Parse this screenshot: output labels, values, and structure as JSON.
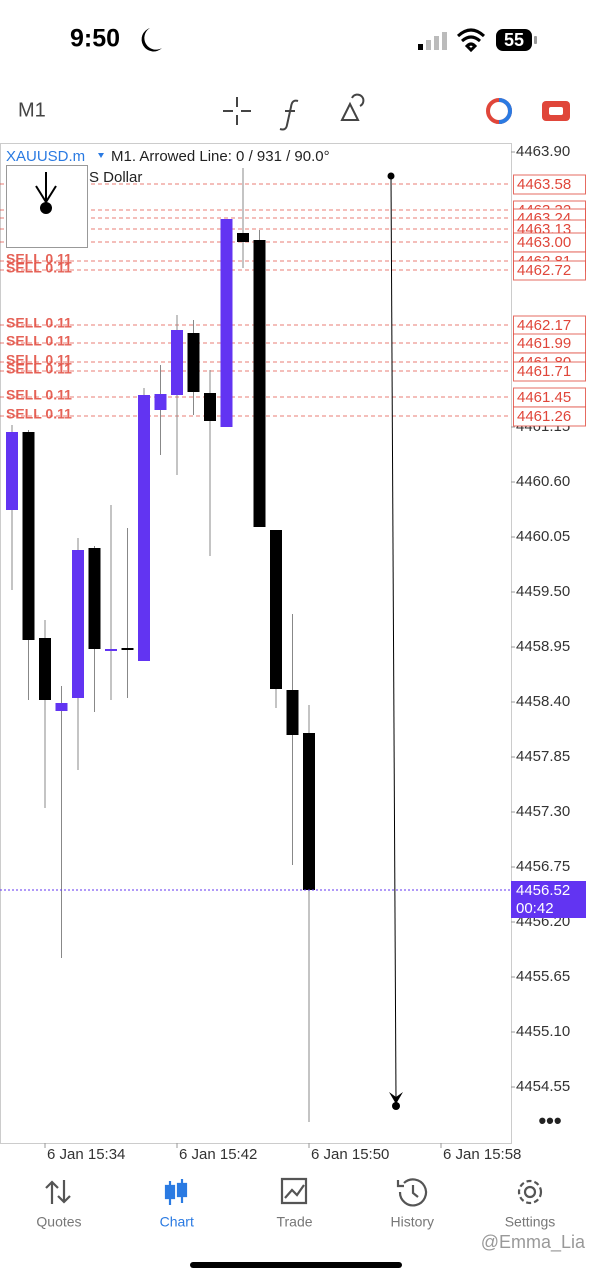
{
  "status_bar": {
    "time": "9:50",
    "battery": "55"
  },
  "toolbar": {
    "timeframe": "M1"
  },
  "chart_data": {
    "type": "candlestick",
    "symbol": "XAUUSD.m",
    "caption": "M1. Arrowed Line: 0 / 931 / 90.0°",
    "subtitle": "S Dollar",
    "categories": [
      null,
      null,
      "6 Jan 15:34",
      null,
      null,
      null,
      null,
      null,
      null,
      null,
      "6 Jan 15:42",
      null,
      null,
      null,
      null,
      null,
      null,
      null,
      "6 Jan 15:50",
      null,
      null,
      null,
      null,
      null,
      null,
      null,
      "6 Jan 15:58"
    ],
    "open": [
      4460.32,
      4461.1,
      4459.04,
      4458.31,
      4458.44,
      4459.94,
      4458.93,
      4458.94,
      4458.81,
      4461.32,
      4461.47,
      4462.09,
      4461.49,
      4461.15,
      4463.09,
      4463.02,
      4460.12,
      4458.52,
      4458.09,
      null,
      null,
      null,
      null,
      null,
      null,
      null,
      null
    ],
    "high": [
      4461.17,
      4461.12,
      4459.22,
      4458.56,
      4460.04,
      4459.96,
      4460.37,
      4460.14,
      4461.54,
      4461.77,
      4462.27,
      4462.22,
      4461.72,
      4463.23,
      4463.74,
      4463.12,
      4460.12,
      4459.28,
      4458.37,
      null,
      null,
      null,
      null,
      null,
      null,
      null,
      null
    ],
    "low": [
      4459.52,
      4458.42,
      4457.34,
      4455.84,
      4457.72,
      4458.3,
      4458.42,
      4458.44,
      4458.81,
      4460.87,
      4460.67,
      4461.27,
      4459.86,
      4461.15,
      4462.74,
      4460.15,
      4458.34,
      4456.77,
      4454.2,
      null,
      null,
      null,
      null,
      null,
      null,
      null,
      null
    ],
    "close": [
      4461.1,
      4459.02,
      4458.42,
      4458.39,
      4459.92,
      4458.93,
      4458.93,
      4458.92,
      4461.47,
      4461.48,
      4462.12,
      4461.5,
      4461.21,
      4463.23,
      4463.0,
      4460.15,
      4458.53,
      4458.07,
      4456.52,
      null,
      null,
      null,
      null,
      null,
      null,
      null,
      null
    ],
    "colors": {
      "up": "#6234f2",
      "down": "#000000",
      "order": "#e0463a",
      "price": "#6234f2"
    },
    "ylim": [
      4453.99,
      4463.99
    ],
    "yticks": [
      {
        "value": 4463.9,
        "label": "4463.90"
      },
      4461.15,
      {
        "value": 4460.6,
        "label": "4460.60"
      },
      4460.05,
      {
        "value": 4459.5,
        "label": "4459.50"
      },
      4458.95,
      {
        "value": 4458.4,
        "label": "4458.40"
      },
      4457.85,
      {
        "value": 4457.3,
        "label": "4457.30"
      },
      4456.75,
      {
        "value": 4456.2,
        "label": "4456.20"
      },
      4455.65,
      {
        "value": 4455.1,
        "label": "4455.10"
      },
      4454.55
    ],
    "orders": [
      {
        "label": "SELL 0.11",
        "price": 4463.58
      },
      {
        "label": "SELL 0.11",
        "price": 4463.32
      },
      {
        "label": "SELL 0.11",
        "price": 4463.24
      },
      {
        "label": "SELL 0.11",
        "price": 4463.13
      },
      {
        "label": "SELL 0.11",
        "price": {
          "value": 4463.0,
          "label": "4463.00"
        }
      },
      {
        "label": "SELL 0.11",
        "price": 4462.81
      },
      {
        "label": "SELL 0.11",
        "price": 4462.72
      },
      {
        "label": "SELL 0.11",
        "price": 4462.17
      },
      {
        "label": "SELL 0.11",
        "price": 4461.99
      },
      {
        "label": "SELL 0.11",
        "price": {
          "value": 4461.8,
          "label": "4461.80"
        }
      },
      {
        "label": "SELL 0.11",
        "price": 4461.71
      },
      {
        "label": "SELL 0.11",
        "price": 4461.45
      },
      {
        "label": "SELL 0.11",
        "price": 4461.26
      }
    ],
    "current_price": 4456.52,
    "timer": "00:42"
  },
  "nav": {
    "items": [
      "Quotes",
      "Chart",
      "Trade",
      "History",
      "Settings"
    ],
    "active": 1
  },
  "watermark": "@Emma_Lia"
}
